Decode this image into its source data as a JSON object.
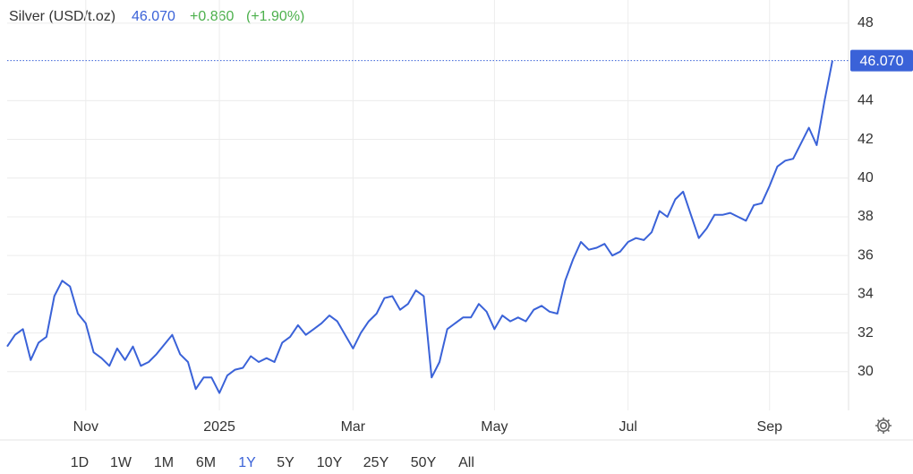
{
  "header": {
    "title": "Silver (USD/t.oz)",
    "price": "46.070",
    "change": "+0.860",
    "change_pct": "(+1.90%)"
  },
  "chart_data": {
    "type": "line",
    "color": "#3a62d8",
    "grid": true,
    "categories": [
      null,
      null,
      null,
      null,
      null,
      null,
      null,
      null,
      null,
      null,
      "Nov",
      null,
      null,
      null,
      null,
      null,
      null,
      null,
      null,
      null,
      null,
      null,
      null,
      null,
      null,
      null,
      null,
      "2025",
      null,
      null,
      null,
      null,
      null,
      null,
      null,
      null,
      null,
      null,
      null,
      null,
      null,
      null,
      null,
      null,
      "Mar",
      null,
      null,
      null,
      null,
      null,
      null,
      null,
      null,
      null,
      null,
      null,
      null,
      null,
      null,
      null,
      null,
      null,
      "May",
      null,
      null,
      null,
      null,
      null,
      null,
      null,
      null,
      null,
      null,
      null,
      null,
      null,
      null,
      null,
      null,
      "Jul",
      null,
      null,
      null,
      null,
      null,
      null,
      null,
      null,
      null,
      null,
      null,
      null,
      null,
      null,
      null,
      null,
      null,
      "Sep",
      null,
      null,
      null,
      null,
      null,
      null,
      null,
      null
    ],
    "values": [
      31.3,
      31.9,
      32.2,
      30.6,
      31.5,
      31.8,
      33.9,
      34.7,
      34.4,
      33.0,
      32.5,
      31.0,
      30.7,
      30.3,
      31.2,
      30.6,
      31.3,
      30.3,
      30.5,
      30.9,
      31.4,
      31.9,
      30.9,
      30.5,
      29.1,
      29.7,
      29.7,
      28.9,
      29.8,
      30.1,
      30.2,
      30.8,
      30.5,
      30.7,
      30.5,
      31.5,
      31.8,
      32.4,
      31.9,
      32.2,
      32.5,
      32.9,
      32.6,
      31.9,
      31.2,
      32.0,
      32.6,
      33.0,
      33.8,
      33.9,
      33.2,
      33.5,
      34.2,
      33.9,
      29.7,
      30.5,
      32.2,
      32.5,
      32.8,
      32.8,
      33.5,
      33.1,
      32.2,
      32.9,
      32.6,
      32.8,
      32.6,
      33.2,
      33.4,
      33.1,
      33.0,
      34.7,
      35.8,
      36.7,
      36.3,
      36.4,
      36.6,
      36.0,
      36.2,
      36.7,
      36.9,
      36.8,
      37.2,
      38.3,
      38.0,
      38.9,
      39.3,
      38.1,
      36.9,
      37.4,
      38.1,
      38.1,
      38.2,
      38.0,
      37.8,
      38.6,
      38.7,
      39.6,
      40.6,
      40.9,
      41.0,
      41.8,
      42.6,
      41.7,
      44.0,
      46.07
    ],
    "ylim": [
      28,
      49.2
    ],
    "yticks": [
      30,
      32,
      34,
      36,
      38,
      40,
      42,
      44,
      48
    ]
  },
  "ranges": {
    "buttons": [
      "1D",
      "1W",
      "1M",
      "6M",
      "1Y",
      "5Y",
      "10Y",
      "25Y",
      "50Y",
      "All"
    ],
    "active": "1Y"
  }
}
